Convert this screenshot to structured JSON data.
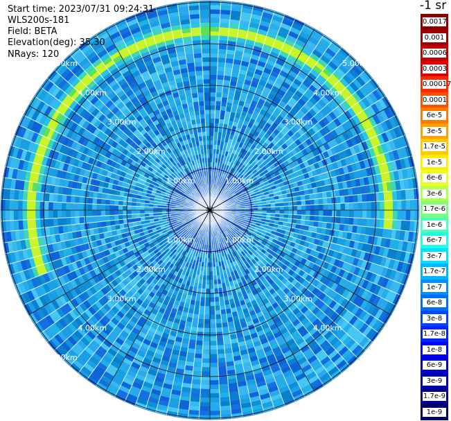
{
  "info": {
    "start_time": "Start time: 2023/07/31 09:24:31",
    "instrument": "WLS200s-181",
    "field": "Field: BETA",
    "elevation": "Elevation(deg): 35.30",
    "nrays": "NRays: 120"
  },
  "colorbar": {
    "title": "-1 sr",
    "labels": [
      "0.0017",
      "0.001",
      "0.0006",
      "0.0003",
      "0.00017",
      "0.0001",
      "6e-5",
      "3e-5",
      "1.7e-5",
      "1e-5",
      "6e-6",
      "3e-6",
      "1.7e-6",
      "1e-6",
      "6e-7",
      "3e-7",
      "1.7e-7",
      "1e-7",
      "6e-8",
      "3e-8",
      "1.7e-8",
      "1e-8",
      "6e-9",
      "3e-9",
      "1.7e-9",
      "1e-9"
    ],
    "colors": [
      "#8a0000",
      "#a00000",
      "#c40000",
      "#e00000",
      "#ff2a00",
      "#ff5000",
      "#ff7a00",
      "#ffa000",
      "#ffc800",
      "#ffee00",
      "#e6ff1e",
      "#b4ff4b",
      "#7dff7d",
      "#4bffb4",
      "#1effe6",
      "#00e0ff",
      "#00b4ff",
      "#0090ff",
      "#006cff",
      "#0048ff",
      "#0024ff",
      "#0000ff",
      "#0000d8",
      "#0000b0",
      "#000088",
      "#000060"
    ]
  },
  "scope": {
    "range_labels": [
      "1.00km",
      "2.00km",
      "3.00km",
      "4.00km",
      "5.00km"
    ],
    "colors": {
      "background": "#0e8fd8",
      "ring_band": "#c8f52a",
      "ring_inner": "#5fe05a",
      "near_center": "#2a6ee8",
      "grid": "#000000",
      "gaps": "#ffffff"
    }
  }
}
